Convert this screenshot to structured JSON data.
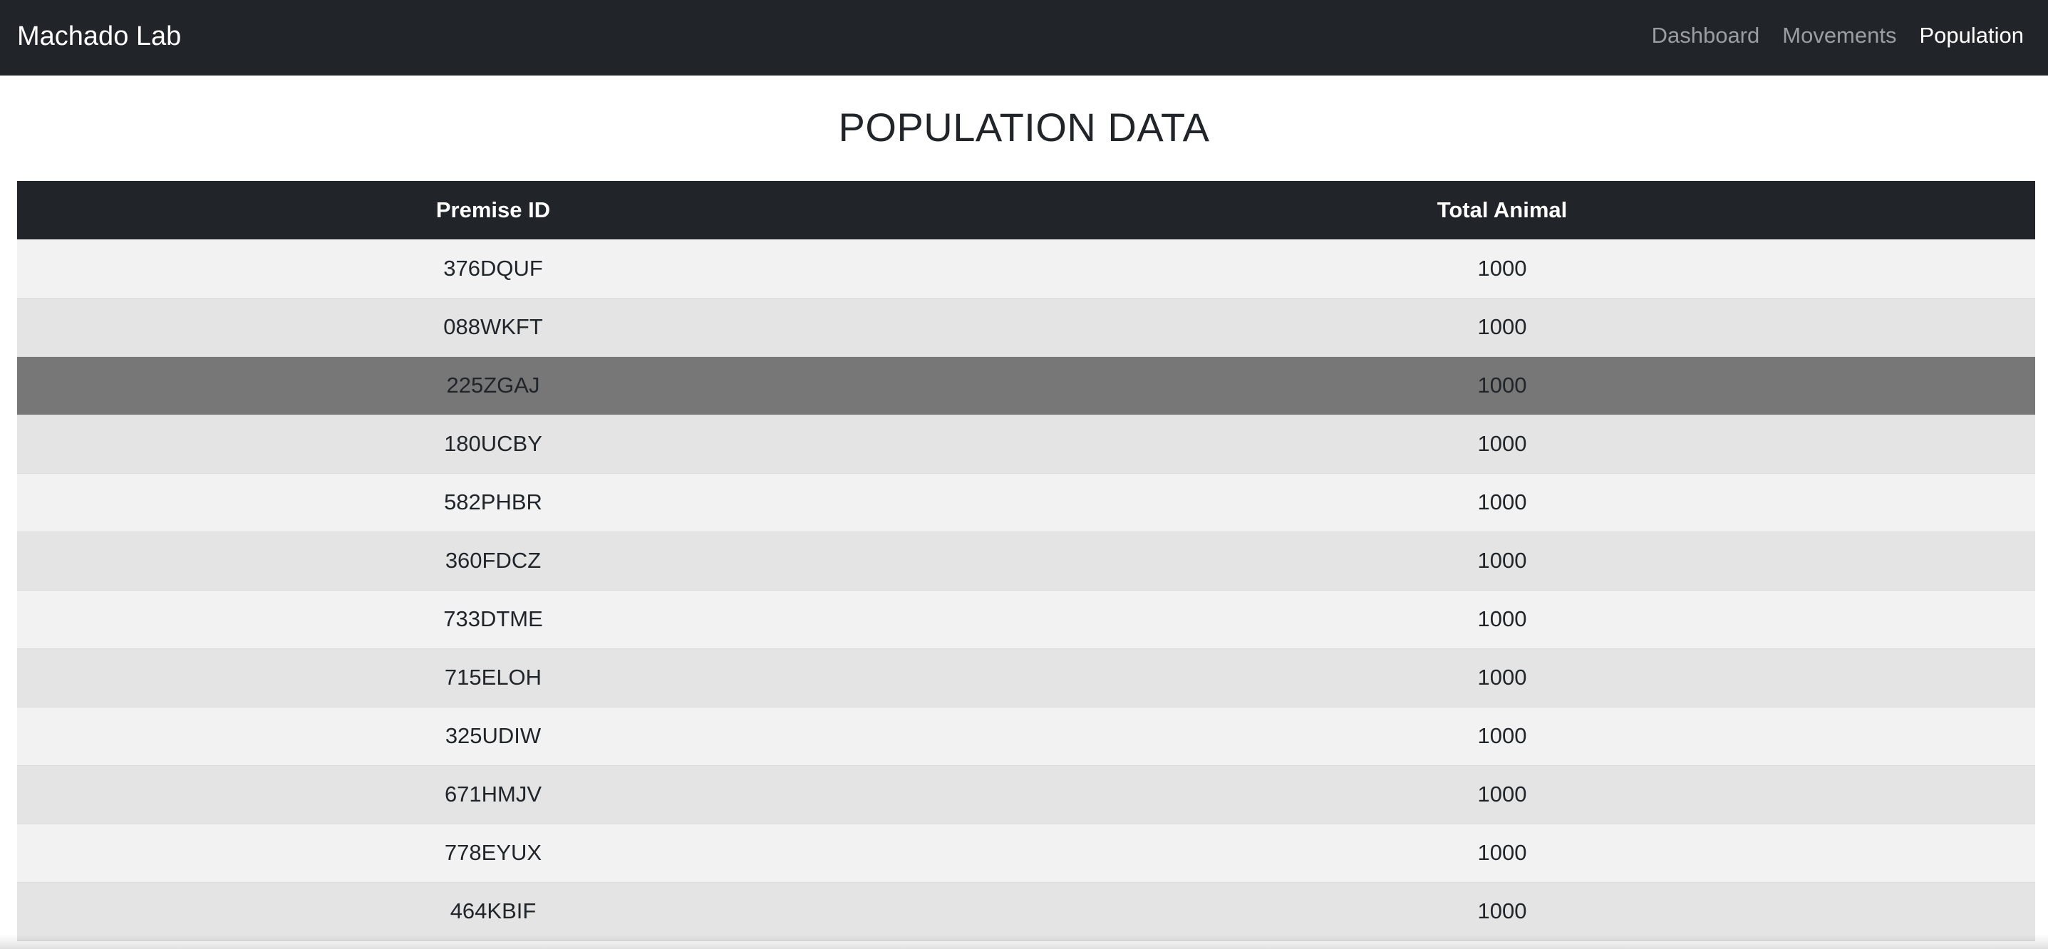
{
  "navbar": {
    "brand": "Machado Lab",
    "links": [
      {
        "label": "Dashboard",
        "active": false
      },
      {
        "label": "Movements",
        "active": false
      },
      {
        "label": "Population",
        "active": true
      }
    ]
  },
  "page": {
    "title": "POPULATION DATA"
  },
  "table": {
    "headers": [
      "Premise ID",
      "Total Animal"
    ],
    "rows": [
      {
        "premise_id": "376DQUF",
        "total_animal": "1000"
      },
      {
        "premise_id": "088WKFT",
        "total_animal": "1000"
      },
      {
        "premise_id": "225ZGAJ",
        "total_animal": "1000"
      },
      {
        "premise_id": "180UCBY",
        "total_animal": "1000"
      },
      {
        "premise_id": "582PHBR",
        "total_animal": "1000"
      },
      {
        "premise_id": "360FDCZ",
        "total_animal": "1000"
      },
      {
        "premise_id": "733DTME",
        "total_animal": "1000"
      },
      {
        "premise_id": "715ELOH",
        "total_animal": "1000"
      },
      {
        "premise_id": "325UDIW",
        "total_animal": "1000"
      },
      {
        "premise_id": "671HMJV",
        "total_animal": "1000"
      },
      {
        "premise_id": "778EYUX",
        "total_animal": "1000"
      },
      {
        "premise_id": "464KBIF",
        "total_animal": "1000"
      }
    ],
    "hovered_row_index": 2
  },
  "colors": {
    "navbar_bg": "#212529",
    "header_bg": "#212529",
    "row_odd": "#f2f2f2",
    "row_even": "#e4e4e4",
    "row_hover": "#777777"
  }
}
